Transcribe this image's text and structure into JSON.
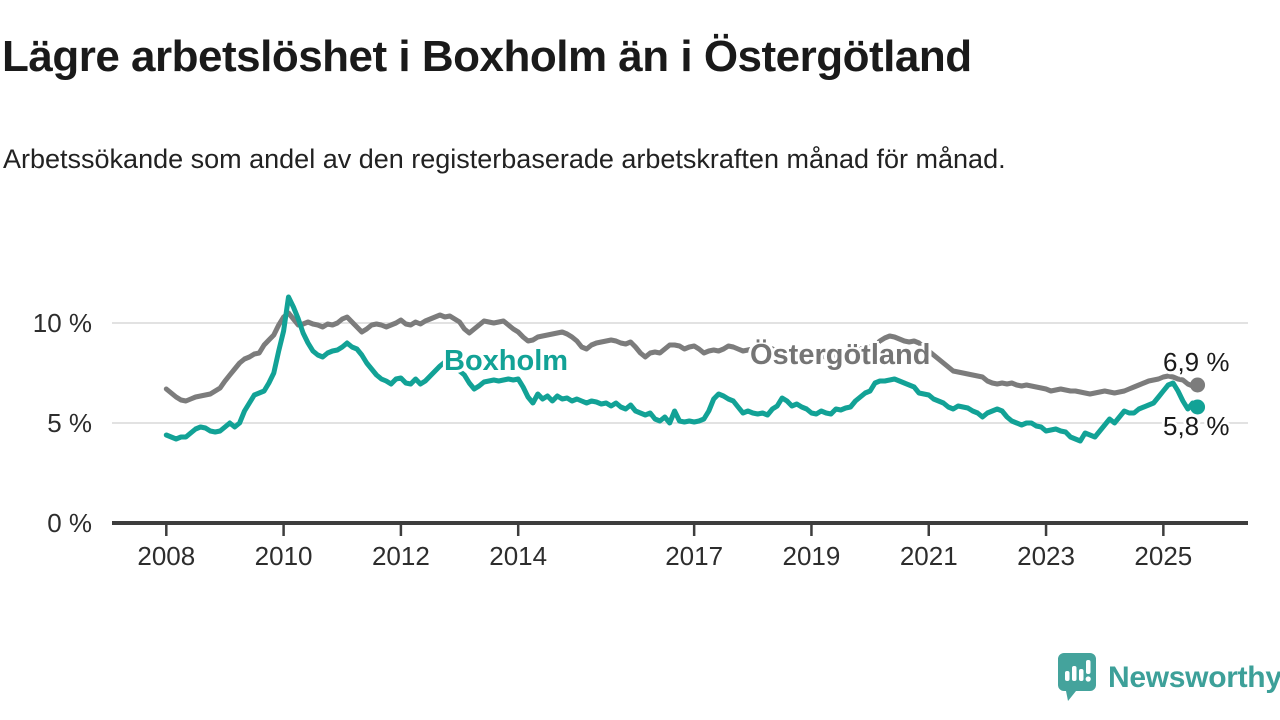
{
  "header": {
    "title": "Lägre arbetslöshet i Boxholm än i Östergötland",
    "subtitle": "Arbetssökande som andel av den registerbaserade arbetskraften månad för månad."
  },
  "colors": {
    "boxholm_teal": "#12a296",
    "ostergotland_gray": "#7c7c7c",
    "grid": "#d9d9d9",
    "axis": "#3d3d3d",
    "text": "#1a1a1a",
    "logo_teal": "#44a39c"
  },
  "chart_data": {
    "type": "line",
    "unit": "%",
    "x_start_year": 2008,
    "points_per_year": 12,
    "x_end_label_note": "data runs monthly from Jan 2008 to Aug 2025",
    "ylim": [
      0,
      11.5
    ],
    "grid": "horizontal",
    "yticks": [
      {
        "value": 0,
        "label": "0 %"
      },
      {
        "value": 5,
        "label": "5 %"
      },
      {
        "value": 10,
        "label": "10 %"
      }
    ],
    "xticks": [
      {
        "year": 2008,
        "label": "2008"
      },
      {
        "year": 2010,
        "label": "2010"
      },
      {
        "year": 2012,
        "label": "2012"
      },
      {
        "year": 2014,
        "label": "2014"
      },
      {
        "year": 2017,
        "label": "2017"
      },
      {
        "year": 2019,
        "label": "2019"
      },
      {
        "year": 2021,
        "label": "2021"
      },
      {
        "year": 2023,
        "label": "2023"
      },
      {
        "year": 2025,
        "label": "2025"
      }
    ],
    "series": [
      {
        "name": "Östergötland",
        "color": "#7c7c7c",
        "end_label": "6,9 %",
        "end_value": 6.9,
        "values": [
          6.7,
          6.5,
          6.3,
          6.15,
          6.1,
          6.2,
          6.3,
          6.35,
          6.4,
          6.45,
          6.6,
          6.75,
          7.1,
          7.4,
          7.7,
          8.0,
          8.2,
          8.3,
          8.45,
          8.5,
          8.9,
          9.15,
          9.4,
          9.9,
          10.3,
          10.5,
          10.2,
          9.9,
          9.95,
          10.05,
          9.95,
          9.9,
          9.8,
          9.95,
          9.9,
          10.0,
          10.2,
          10.3,
          10.05,
          9.8,
          9.55,
          9.7,
          9.9,
          9.95,
          9.9,
          9.8,
          9.9,
          10.0,
          10.15,
          9.95,
          9.9,
          10.05,
          9.95,
          10.1,
          10.2,
          10.3,
          10.4,
          10.3,
          10.35,
          10.2,
          10.05,
          9.7,
          9.5,
          9.7,
          9.9,
          10.1,
          10.05,
          10.0,
          10.05,
          10.1,
          9.9,
          9.7,
          9.55,
          9.3,
          9.1,
          9.15,
          9.3,
          9.35,
          9.4,
          9.45,
          9.5,
          9.55,
          9.45,
          9.3,
          9.1,
          8.8,
          8.7,
          8.9,
          9.0,
          9.05,
          9.1,
          9.15,
          9.1,
          9.0,
          8.95,
          9.05,
          8.8,
          8.5,
          8.3,
          8.5,
          8.55,
          8.5,
          8.7,
          8.9,
          8.9,
          8.85,
          8.7,
          8.8,
          8.85,
          8.7,
          8.5,
          8.6,
          8.65,
          8.6,
          8.7,
          8.85,
          8.8,
          8.7,
          8.6,
          8.65,
          8.7,
          8.8,
          8.9,
          8.8,
          8.7,
          8.6,
          8.55,
          8.5,
          8.45,
          8.5,
          8.45,
          8.4,
          8.35,
          8.3,
          8.35,
          8.3,
          8.35,
          8.4,
          8.45,
          8.5,
          8.55,
          8.6,
          8.7,
          8.75,
          8.8,
          8.9,
          9.1,
          9.25,
          9.35,
          9.3,
          9.2,
          9.1,
          9.05,
          9.1,
          9.0,
          8.8,
          8.6,
          8.4,
          8.2,
          8.0,
          7.8,
          7.6,
          7.55,
          7.5,
          7.45,
          7.4,
          7.35,
          7.3,
          7.1,
          7.0,
          6.95,
          7.0,
          6.95,
          7.0,
          6.9,
          6.85,
          6.9,
          6.85,
          6.8,
          6.75,
          6.7,
          6.6,
          6.65,
          6.7,
          6.65,
          6.6,
          6.6,
          6.55,
          6.5,
          6.45,
          6.5,
          6.55,
          6.6,
          6.55,
          6.5,
          6.55,
          6.6,
          6.7,
          6.8,
          6.9,
          7.0,
          7.1,
          7.15,
          7.2,
          7.3,
          7.35,
          7.3,
          7.2,
          7.15,
          6.95,
          6.85,
          6.9
        ]
      },
      {
        "name": "Boxholm",
        "color": "#12a296",
        "end_label": "5,8 %",
        "end_value": 5.8,
        "values": [
          4.4,
          4.3,
          4.2,
          4.3,
          4.3,
          4.5,
          4.7,
          4.8,
          4.75,
          4.6,
          4.55,
          4.6,
          4.8,
          5.0,
          4.8,
          5.0,
          5.6,
          6.0,
          6.4,
          6.5,
          6.6,
          7.0,
          7.5,
          8.6,
          9.6,
          11.3,
          10.8,
          10.2,
          9.5,
          9.0,
          8.6,
          8.4,
          8.3,
          8.5,
          8.6,
          8.65,
          8.8,
          9.0,
          8.8,
          8.7,
          8.4,
          8.0,
          7.7,
          7.4,
          7.2,
          7.1,
          6.95,
          7.2,
          7.25,
          7.0,
          6.95,
          7.2,
          6.95,
          7.1,
          7.35,
          7.6,
          7.85,
          8.05,
          8.0,
          7.8,
          7.6,
          7.4,
          7.0,
          6.7,
          6.85,
          7.05,
          7.1,
          7.15,
          7.1,
          7.15,
          7.2,
          7.15,
          7.2,
          6.8,
          6.3,
          6.0,
          6.45,
          6.2,
          6.35,
          6.1,
          6.35,
          6.2,
          6.25,
          6.1,
          6.2,
          6.1,
          6.0,
          6.1,
          6.05,
          5.95,
          6.0,
          5.85,
          6.0,
          5.8,
          5.7,
          5.9,
          5.6,
          5.5,
          5.4,
          5.5,
          5.2,
          5.1,
          5.3,
          5.0,
          5.6,
          5.1,
          5.05,
          5.1,
          5.05,
          5.1,
          5.2,
          5.6,
          6.2,
          6.45,
          6.35,
          6.2,
          6.1,
          5.8,
          5.5,
          5.6,
          5.5,
          5.45,
          5.5,
          5.4,
          5.7,
          5.85,
          6.25,
          6.1,
          5.85,
          5.95,
          5.8,
          5.7,
          5.5,
          5.45,
          5.6,
          5.5,
          5.45,
          5.7,
          5.65,
          5.75,
          5.8,
          6.1,
          6.3,
          6.5,
          6.6,
          7.0,
          7.1,
          7.1,
          7.15,
          7.2,
          7.1,
          7.0,
          6.9,
          6.8,
          6.5,
          6.45,
          6.4,
          6.2,
          6.1,
          6.0,
          5.8,
          5.7,
          5.85,
          5.8,
          5.75,
          5.6,
          5.5,
          5.3,
          5.5,
          5.6,
          5.7,
          5.6,
          5.3,
          5.1,
          5.0,
          4.9,
          5.0,
          5.0,
          4.85,
          4.8,
          4.6,
          4.65,
          4.7,
          4.6,
          4.55,
          4.3,
          4.2,
          4.1,
          4.5,
          4.4,
          4.3,
          4.6,
          4.9,
          5.2,
          5.0,
          5.3,
          5.6,
          5.5,
          5.5,
          5.7,
          5.8,
          5.9,
          6.0,
          6.3,
          6.6,
          6.9,
          7.0,
          6.6,
          6.1,
          5.7,
          6.0,
          5.8
        ]
      }
    ],
    "title": "Lägre arbetslöshet i Boxholm än i Östergötland",
    "xlabel": "",
    "ylabel": ""
  },
  "footer": {
    "brand": "Newsworthy"
  }
}
